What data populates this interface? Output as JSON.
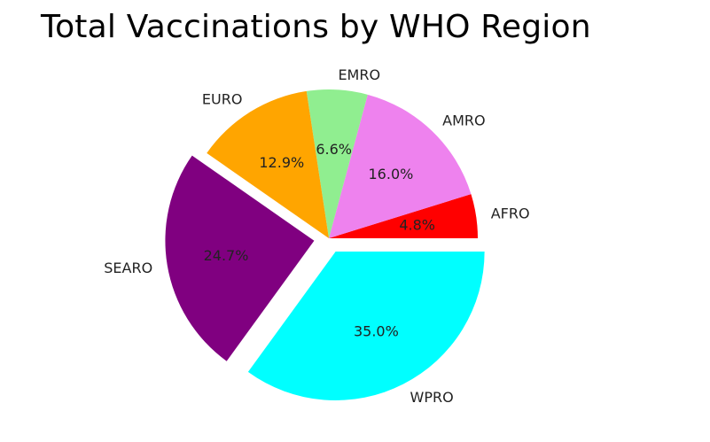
{
  "chart_data": {
    "type": "pie",
    "title": "Total Vaccinations by WHO Region",
    "slices": [
      {
        "label": "AFRO",
        "percent": 4.8,
        "pct_text": "4.8%",
        "color": "#ff0000",
        "explode": 0
      },
      {
        "label": "AMRO",
        "percent": 16.0,
        "pct_text": "16.0%",
        "color": "#ee82ee",
        "explode": 0
      },
      {
        "label": "EMRO",
        "percent": 6.6,
        "pct_text": "6.6%",
        "color": "#90ee90",
        "explode": 0
      },
      {
        "label": "EURO",
        "percent": 12.9,
        "pct_text": "12.9%",
        "color": "#ffa500",
        "explode": 0
      },
      {
        "label": "SEARO",
        "percent": 24.7,
        "pct_text": "24.7%",
        "color": "#800080",
        "explode": 0.1
      },
      {
        "label": "WPRO",
        "percent": 35.0,
        "pct_text": "35.0%",
        "color": "#00ffff",
        "explode": 0.1
      }
    ],
    "start_angle": 0,
    "direction": "counterclockwise",
    "legend": "none"
  }
}
